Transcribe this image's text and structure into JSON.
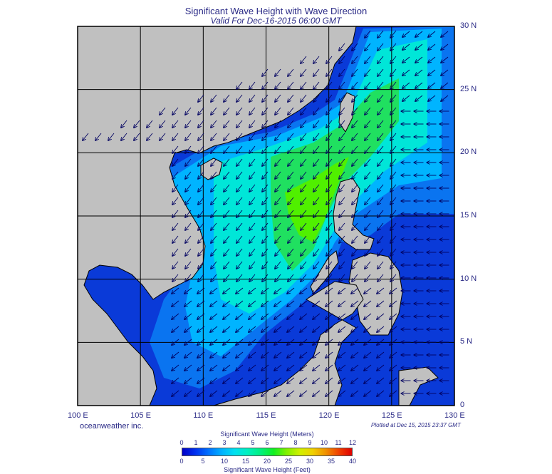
{
  "title": "Significant Wave Height with Wave Direction",
  "subtitle": "Valid For Dec-16-2015 06:00 GMT",
  "map": {
    "lon_range": [
      100,
      130
    ],
    "lat_range": [
      0,
      30
    ],
    "lon_labels": [
      "100 E",
      "105 E",
      "110 E",
      "115 E",
      "120 E",
      "125 E",
      "130 E"
    ],
    "lat_labels": [
      "30 N",
      "25 N",
      "20 N",
      "15 N",
      "10 N",
      "5 N",
      "0"
    ],
    "land_color": "#c0c0c0",
    "grid": true,
    "dominant_wave_direction": "toward southwest",
    "arrow_color": "#000060"
  },
  "brand": "oceanweather inc.",
  "plotted": "Plotted at Dec 15, 2015 23:37 GMT",
  "colorbar": {
    "meters_title": "Significant Wave Height (Meters)",
    "feet_title": "Significant Wave Height (Feet)",
    "meters_ticks": [
      "0",
      "1",
      "2",
      "3",
      "4",
      "5",
      "6",
      "7",
      "8",
      "9",
      "10",
      "11",
      "12"
    ],
    "feet_ticks": [
      "0",
      "5",
      "10",
      "15",
      "20",
      "25",
      "30",
      "35",
      "40"
    ],
    "colors": [
      "#0000c8",
      "#0030f0",
      "#0070ff",
      "#00b0ff",
      "#00e0f0",
      "#00f0c0",
      "#00f080",
      "#10f020",
      "#80f000",
      "#d0f000",
      "#f0d000",
      "#f09000",
      "#f04000",
      "#e00000"
    ]
  }
}
